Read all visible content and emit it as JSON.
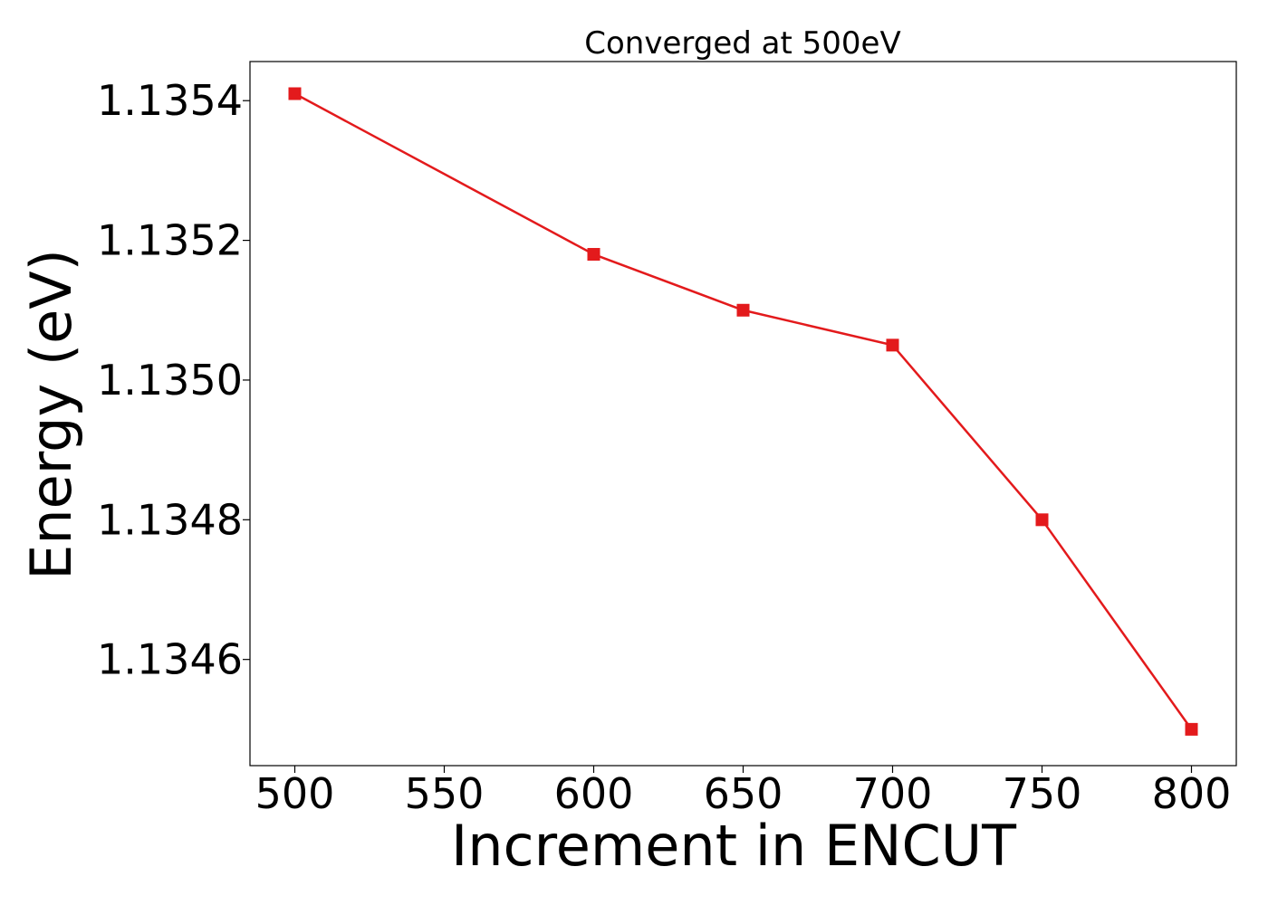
{
  "chart_data": {
    "type": "line",
    "title": "Converged at 500eV",
    "xlabel": "Increment in ENCUT",
    "ylabel": "Energy (eV)",
    "xlim": [
      485,
      815
    ],
    "ylim": [
      1.134448,
      1.135456
    ],
    "xticks": [
      500,
      550,
      600,
      650,
      700,
      750,
      800
    ],
    "xtick_labels": [
      "500",
      "550",
      "600",
      "650",
      "700",
      "750",
      "800"
    ],
    "yticks": [
      1.1346,
      1.1348,
      1.135,
      1.1352,
      1.1354
    ],
    "ytick_labels": [
      "1.1346",
      "1.1348",
      "1.1350",
      "1.1352",
      "1.1354"
    ],
    "grid": false,
    "series": [
      {
        "x": [
          500,
          600,
          650,
          700,
          750,
          800
        ],
        "y": [
          1.13541,
          1.13518,
          1.1351,
          1.13505,
          1.1348,
          1.1345
        ],
        "color": "#e31a1c",
        "marker": "square"
      }
    ]
  }
}
